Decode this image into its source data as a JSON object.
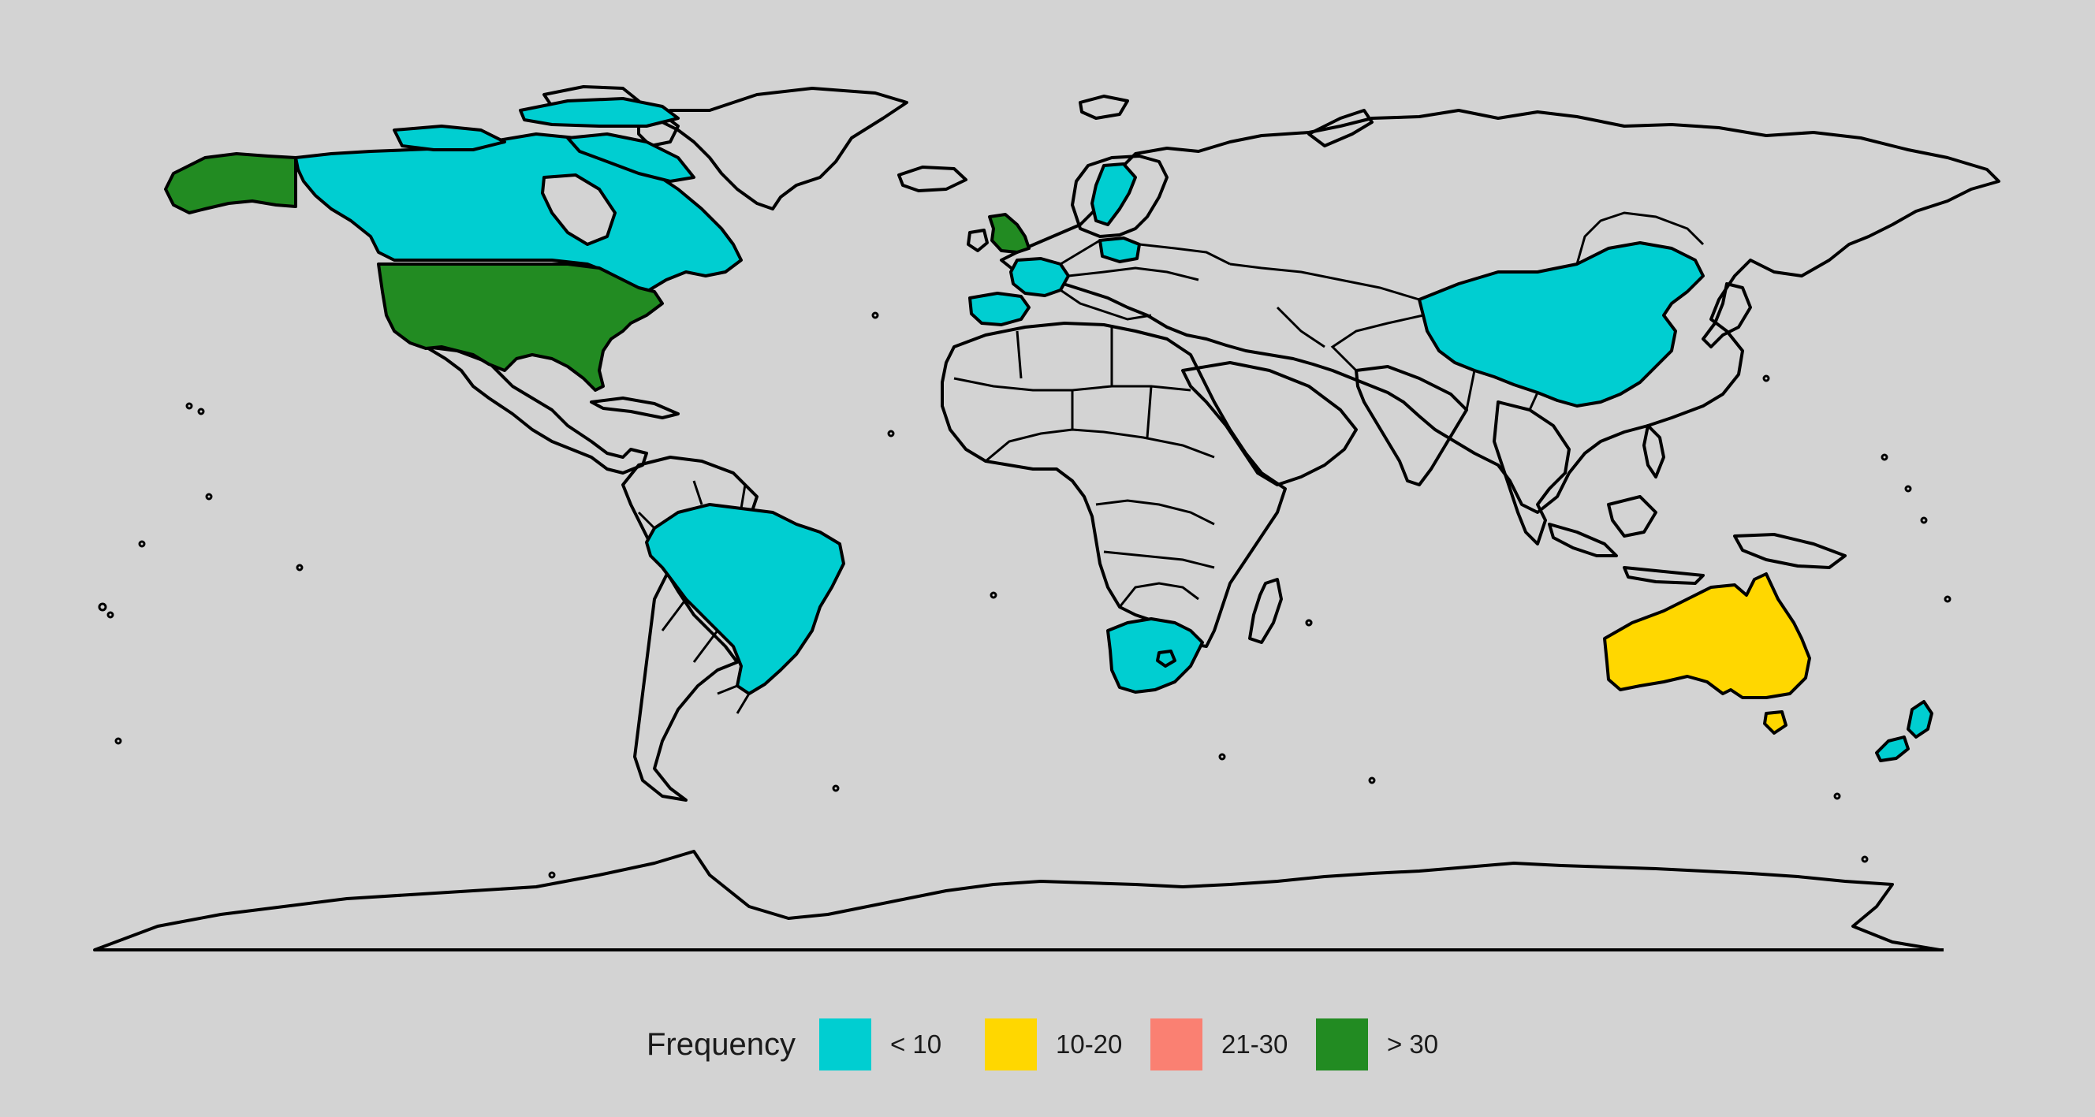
{
  "legend": {
    "title": "Frequency",
    "items": [
      {
        "label": "< 10",
        "color": "#00ced1"
      },
      {
        "label": "10-20",
        "color": "#ffd700"
      },
      {
        "label": "21-30",
        "color": "#fa8072"
      },
      {
        "label": "> 30",
        "color": "#228b22"
      }
    ]
  },
  "colors": {
    "background": "#d3d3d3",
    "outline": "#000000",
    "unfilled": "none"
  },
  "countries": [
    {
      "name": "United States",
      "category": "> 30"
    },
    {
      "name": "Alaska",
      "category": "> 30"
    },
    {
      "name": "United Kingdom",
      "category": "> 30"
    },
    {
      "name": "Canada",
      "category": "< 10"
    },
    {
      "name": "Brazil",
      "category": "< 10"
    },
    {
      "name": "China",
      "category": "< 10"
    },
    {
      "name": "South Africa",
      "category": "< 10"
    },
    {
      "name": "Spain",
      "category": "< 10"
    },
    {
      "name": "France",
      "category": "< 10"
    },
    {
      "name": "Sweden",
      "category": "< 10"
    },
    {
      "name": "Poland",
      "category": "< 10"
    },
    {
      "name": "New Zealand",
      "category": "< 10"
    },
    {
      "name": "Australia",
      "category": "10-20"
    }
  ]
}
